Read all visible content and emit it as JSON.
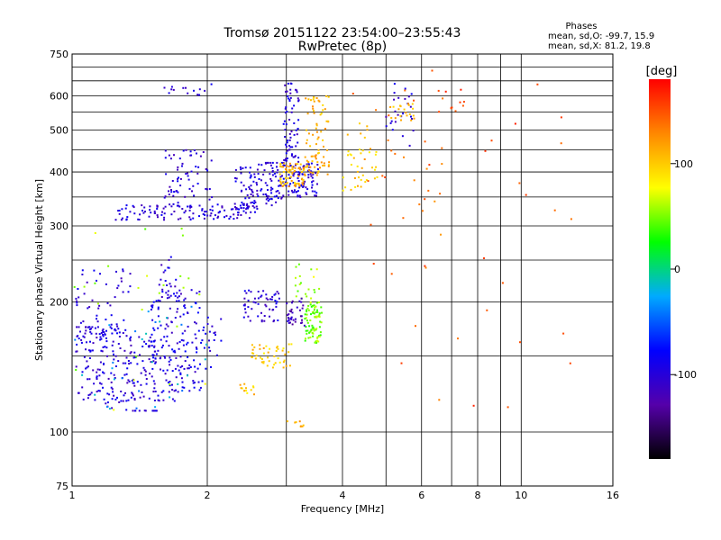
{
  "chart_data": {
    "type": "scatter",
    "title": "Tromsø 20151122 23:54:00–23:55:43",
    "subtitle": "RwPretec (8p)",
    "xlabel": "Frequency [MHz]",
    "ylabel": "Stationary phase Virtual Height [km]",
    "x_scale": "log",
    "y_scale": "log",
    "xlim": [
      1,
      16
    ],
    "ylim": [
      75,
      750
    ],
    "x_ticks": [
      1,
      2,
      4,
      6,
      8,
      10,
      16
    ],
    "x_ticks_minor": [
      3,
      5,
      7,
      9
    ],
    "y_ticks": [
      75,
      100,
      200,
      300,
      400,
      500,
      600,
      750
    ],
    "y_ticks_minor": [
      150,
      250,
      350,
      450,
      550,
      650,
      700
    ],
    "grid": true,
    "stats": {
      "heading": "Phases",
      "line1": "mean, sd,O:  -99.7, 15.9",
      "line2": "mean, sd,X:   81.2, 19.8"
    },
    "colorbar": {
      "label": "[deg]",
      "min": -180,
      "max": 180,
      "ticks": [
        100,
        0,
        -100
      ],
      "colormap": [
        "#000000",
        "#5500aa",
        "#0000ff",
        "#00aaff",
        "#00ff00",
        "#ffff00",
        "#ff8800",
        "#ff0000"
      ]
    },
    "clusters": [
      {
        "fmin": 1.02,
        "fmax": 1.55,
        "hmin": 112,
        "hmax": 175,
        "phase": -100,
        "n": 220,
        "trend": -0.3
      },
      {
        "fmin": 1.02,
        "fmax": 1.35,
        "hmin": 150,
        "hmax": 240,
        "phase": -100,
        "n": 60
      },
      {
        "fmin": 1.5,
        "fmax": 1.95,
        "hmin": 118,
        "hmax": 215,
        "phase": -95,
        "n": 170
      },
      {
        "fmin": 1.55,
        "fmax": 1.75,
        "hmin": 200,
        "hmax": 265,
        "phase": -100,
        "n": 25
      },
      {
        "fmin": 1.95,
        "fmax": 2.15,
        "hmin": 140,
        "hmax": 185,
        "phase": -95,
        "n": 20
      },
      {
        "fmin": 1.25,
        "fmax": 2.6,
        "hmin": 310,
        "hmax": 340,
        "phase": -100,
        "n": 130,
        "trend": 0.15
      },
      {
        "fmin": 2.3,
        "fmax": 2.95,
        "hmin": 330,
        "hmax": 420,
        "phase": -100,
        "n": 120,
        "trend": 0.2
      },
      {
        "fmin": 1.6,
        "fmax": 2.05,
        "hmin": 340,
        "hmax": 450,
        "phase": -100,
        "n": 60
      },
      {
        "fmin": 1.6,
        "fmax": 2.15,
        "hmin": 600,
        "hmax": 640,
        "phase": -100,
        "n": 14
      },
      {
        "fmin": 2.95,
        "fmax": 3.2,
        "hmin": 350,
        "hmax": 650,
        "phase": -100,
        "n": 110
      },
      {
        "fmin": 3.2,
        "fmax": 3.55,
        "hmin": 350,
        "hmax": 420,
        "phase": -100,
        "n": 50
      },
      {
        "fmin": 2.9,
        "fmax": 3.3,
        "hmin": 370,
        "hmax": 420,
        "phase": 110,
        "n": 70
      },
      {
        "fmin": 3.3,
        "fmax": 3.75,
        "hmin": 390,
        "hmax": 600,
        "phase": 110,
        "n": 80
      },
      {
        "fmin": 3.3,
        "fmax": 3.6,
        "hmin": 160,
        "hmax": 200,
        "phase": 50,
        "n": 80
      },
      {
        "fmin": 3.1,
        "fmax": 3.6,
        "hmin": 200,
        "hmax": 245,
        "phase": 60,
        "n": 20
      },
      {
        "fmin": 2.4,
        "fmax": 2.9,
        "hmin": 180,
        "hmax": 215,
        "phase": -100,
        "n": 55
      },
      {
        "fmin": 3.0,
        "fmax": 3.3,
        "hmin": 175,
        "hmax": 205,
        "phase": -115,
        "n": 35
      },
      {
        "fmin": 2.5,
        "fmax": 3.1,
        "hmin": 140,
        "hmax": 160,
        "phase": 100,
        "n": 45
      },
      {
        "fmin": 2.35,
        "fmax": 2.55,
        "hmin": 122,
        "hmax": 130,
        "phase": 100,
        "n": 12
      },
      {
        "fmin": 3.0,
        "fmax": 3.3,
        "hmin": 102,
        "hmax": 106,
        "phase": 110,
        "n": 8
      },
      {
        "fmin": 4.0,
        "fmax": 4.8,
        "hmin": 360,
        "hmax": 520,
        "phase": 100,
        "n": 40
      },
      {
        "fmin": 5.0,
        "fmax": 5.8,
        "hmin": 450,
        "hmax": 640,
        "phase": -100,
        "n": 25
      },
      {
        "fmin": 5.1,
        "fmax": 5.8,
        "hmin": 520,
        "hmax": 580,
        "phase": 110,
        "n": 20
      },
      {
        "fmin": 4.2,
        "fmax": 6.8,
        "hmin": 230,
        "hmax": 650,
        "phase": 140,
        "n": 25
      },
      {
        "fmin": 6.5,
        "fmax": 7.5,
        "hmin": 520,
        "hmax": 620,
        "phase": 150,
        "n": 12
      },
      {
        "fmin": 4.5,
        "fmax": 13,
        "hmin": 110,
        "hmax": 700,
        "phase": 150,
        "n": 30
      },
      {
        "fmin": 1.0,
        "fmax": 2.0,
        "hmin": 85,
        "hmax": 300,
        "phase": 60,
        "n": 25
      },
      {
        "fmin": 1.0,
        "fmax": 2.0,
        "hmin": 110,
        "hmax": 200,
        "phase": -30,
        "n": 30
      }
    ]
  }
}
